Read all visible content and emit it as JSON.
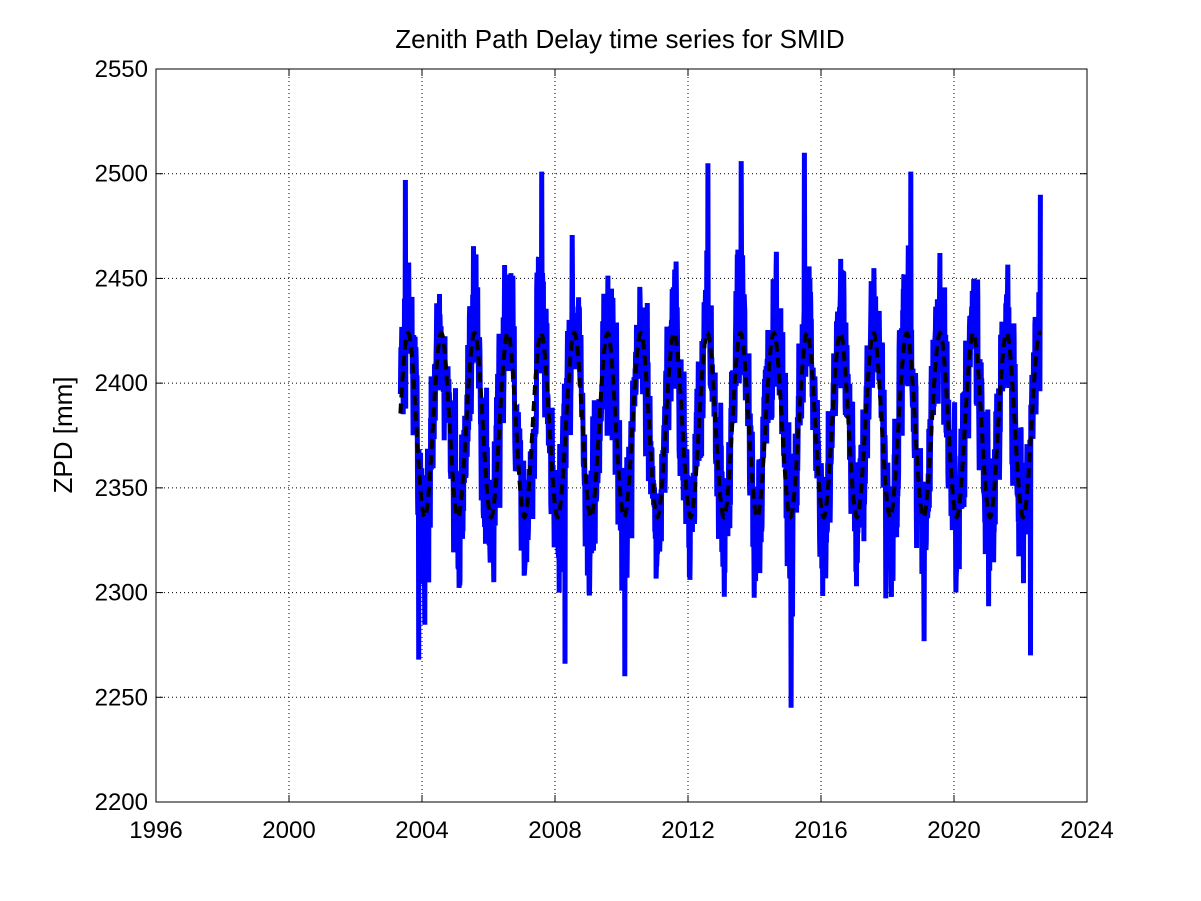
{
  "chart_data": {
    "type": "line",
    "title": "Zenith Path Delay time series for SMID",
    "xlabel": "",
    "ylabel": "ZPD [mm]",
    "xlim": [
      1996,
      2024
    ],
    "ylim": [
      2200,
      2550
    ],
    "x_ticks": [
      1996,
      2000,
      2004,
      2008,
      2012,
      2016,
      2020,
      2024
    ],
    "y_ticks": [
      2200,
      2250,
      2300,
      2350,
      2400,
      2450,
      2500,
      2550
    ],
    "grid": true,
    "grid_style": "dotted",
    "legend": "none",
    "series": [
      {
        "style": "solid",
        "color": "#0000ff",
        "x_range": [
          2003.35,
          2022.6
        ],
        "seasonal_mean_mm": 2380,
        "seasonal_amplitude_mm": 48,
        "noise_mm": 40,
        "observed_max": {
          "x": 2015.5,
          "y": 2510
        },
        "observed_min": {
          "x": 2015.1,
          "y": 2245
        },
        "notable_values": [
          {
            "x": 2003.5,
            "y": 2497
          },
          {
            "x": 2003.9,
            "y": 2268
          },
          {
            "x": 2007.6,
            "y": 2501
          },
          {
            "x": 2008.3,
            "y": 2266
          },
          {
            "x": 2010.1,
            "y": 2260
          },
          {
            "x": 2012.6,
            "y": 2505
          },
          {
            "x": 2013.6,
            "y": 2506
          },
          {
            "x": 2015.1,
            "y": 2245
          },
          {
            "x": 2015.5,
            "y": 2510
          },
          {
            "x": 2018.7,
            "y": 2501
          },
          {
            "x": 2022.3,
            "y": 2270
          },
          {
            "x": 2022.6,
            "y": 2490
          }
        ]
      },
      {
        "style": "dashed",
        "color": "#000000",
        "x_range": [
          2003.35,
          2022.6
        ],
        "seasonal_mean_mm": 2380,
        "seasonal_amplitude_mm": 44,
        "max_value": 2424,
        "min_value": 2336
      }
    ]
  }
}
